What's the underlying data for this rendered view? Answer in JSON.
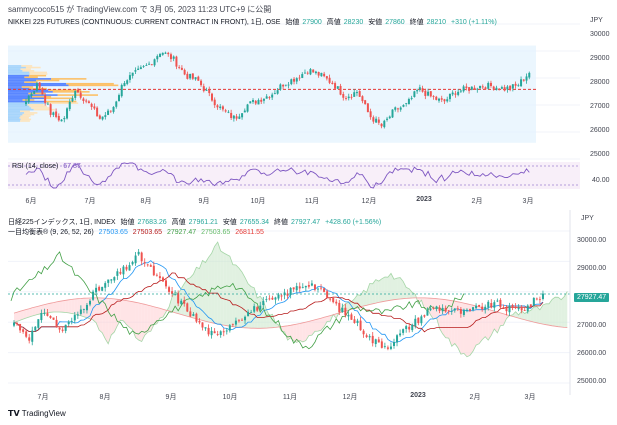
{
  "header": {
    "text": "sammycoco515 が TradingView.com で 3月 05, 2023 11:23 UTC+9 に公開"
  },
  "top_panel": {
    "title_parts": [
      "NIKKEI 225 FUTURES (CONTINUOUS: CURRENT CONTRACT IN FRONT), 1日, OSE",
      "始値",
      "27900",
      "高値",
      "28230",
      "安値",
      "27860",
      "終値",
      "28210",
      "+310 (+1.11%)"
    ],
    "currency": "JPY",
    "y_ticks": [
      "30000",
      "29000",
      "28000",
      "27000",
      "26000",
      "25000"
    ],
    "rsi_label": "RSI (14, close)",
    "rsi_value": "67.87",
    "rsi_tick": "40.00"
  },
  "bottom_panel": {
    "title_parts": [
      "日経225インデックス, 1日, INDEX",
      "始値",
      "27683.26",
      "高値",
      "27961.21",
      "安値",
      "27655.34",
      "終値",
      "27927.47",
      "+428.60 (+1.56%)"
    ],
    "ichimoku_label": "一目均衡表® (9, 26, 52, 26)",
    "ichimoku_values": [
      "27503.65",
      "27503.65",
      "27927.47",
      "27503.65",
      "26811.55"
    ],
    "currency": "JPY",
    "y_ticks": [
      "30000.00",
      "29000.00",
      "28000.00",
      "27000.00",
      "26000.00",
      "25000.00"
    ],
    "price_tag": "27927.47"
  },
  "x_axis_top": [
    "6月",
    "7月",
    "8月",
    "9月",
    "10月",
    "11月",
    "12月",
    "2023",
    "2月",
    "3月"
  ],
  "x_axis_bottom": [
    "7月",
    "8月",
    "9月",
    "10月",
    "11月",
    "12月",
    "2023",
    "2月",
    "3月"
  ],
  "footer": {
    "logo": "TradingView"
  },
  "colors": {
    "up": "#26a69a",
    "down": "#ef5350",
    "rsi": "#7e57c2",
    "tenkan": "#2196f3",
    "kijun": "#b71c1c",
    "chikou": "#43a047",
    "senkou_a": "#a5d6a7",
    "senkou_b": "#ef9a9a",
    "grid": "#f0f3fa"
  },
  "chart_data": [
    {
      "type": "candlestick",
      "title": "NIKKEI 225 FUTURES (CONTINUOUS: CURRENT CONTRACT IN FRONT), 1日, OSE",
      "x_ticks": [
        "6月",
        "7月",
        "8月",
        "9月",
        "10月",
        "11月",
        "12月",
        "2023",
        "2月",
        "3月"
      ],
      "ylim": [
        25000,
        30000
      ],
      "close_path": [
        27200,
        27800,
        26700,
        26400,
        27600,
        27100,
        26500,
        26800,
        27900,
        28200,
        28500,
        29000,
        28700,
        28100,
        27900,
        27300,
        26800,
        26500,
        27000,
        27200,
        27400,
        27800,
        28000,
        28300,
        28100,
        27800,
        27300,
        27500,
        26600,
        26200,
        26800,
        27000,
        27600,
        27300,
        27100,
        27500,
        27600,
        27700,
        27700,
        27600,
        27700,
        28210
      ],
      "last": {
        "open": 27900,
        "high": 28230,
        "low": 27860,
        "close": 28210
      }
    },
    {
      "type": "candlestick",
      "title": "日経225インデックス, 1日, INDEX",
      "x_ticks": [
        "7月",
        "8月",
        "9月",
        "10月",
        "11月",
        "12月",
        "2023",
        "2月",
        "3月"
      ],
      "ylim": [
        25000,
        30000
      ],
      "last": {
        "open": 27683.26,
        "high": 27961.21,
        "low": 27655.34,
        "close": 27927.47
      }
    }
  ]
}
